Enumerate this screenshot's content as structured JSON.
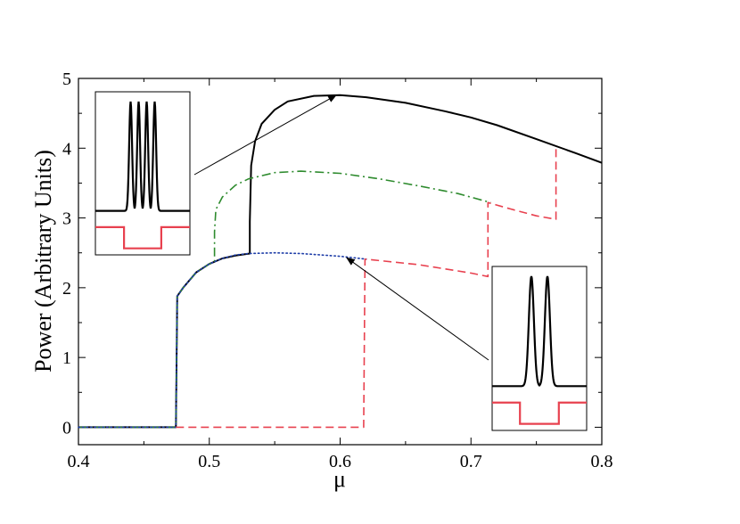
{
  "chart_data": {
    "type": "line",
    "xlabel": "μ",
    "ylabel": "Power (Arbitrary Units)",
    "xlim": [
      0.4,
      0.8
    ],
    "ylim": [
      -0.25,
      5
    ],
    "xticks": [
      0.4,
      0.5,
      0.6,
      0.7,
      0.8
    ],
    "xtick_labels": [
      "0.4",
      "0.5",
      "0.6",
      "0.7",
      "0.8"
    ],
    "yticks": [
      0,
      1,
      2,
      3,
      4,
      5
    ],
    "ytick_labels": [
      "0",
      "1",
      "2",
      "3",
      "4",
      "5"
    ],
    "grid": false,
    "legend": "none",
    "series": [
      {
        "color": "#000000",
        "style": "solid",
        "points": [
          [
            0.4,
            0
          ],
          [
            0.4745,
            0
          ],
          [
            0.4755,
            1.88
          ],
          [
            0.48,
            2.0
          ],
          [
            0.49,
            2.22
          ],
          [
            0.5,
            2.34
          ],
          [
            0.51,
            2.42
          ],
          [
            0.52,
            2.46
          ],
          [
            0.531,
            2.49
          ],
          [
            0.531,
            2.95
          ],
          [
            0.532,
            3.75
          ],
          [
            0.535,
            4.1
          ],
          [
            0.54,
            4.35
          ],
          [
            0.55,
            4.55
          ],
          [
            0.56,
            4.67
          ],
          [
            0.58,
            4.75
          ],
          [
            0.6,
            4.76
          ],
          [
            0.62,
            4.73
          ],
          [
            0.65,
            4.65
          ],
          [
            0.68,
            4.53
          ],
          [
            0.7,
            4.44
          ],
          [
            0.72,
            4.33
          ],
          [
            0.75,
            4.13
          ],
          [
            0.78,
            3.93
          ],
          [
            0.8,
            3.79
          ]
        ]
      },
      {
        "color": "#2e8b2e",
        "style": "dashdot",
        "points": [
          [
            0.4,
            0
          ],
          [
            0.4745,
            0
          ],
          [
            0.4755,
            1.88
          ],
          [
            0.48,
            2.0
          ],
          [
            0.49,
            2.22
          ],
          [
            0.5,
            2.34
          ],
          [
            0.504,
            2.38
          ],
          [
            0.504,
            2.8
          ],
          [
            0.505,
            3.12
          ],
          [
            0.51,
            3.3
          ],
          [
            0.52,
            3.47
          ],
          [
            0.53,
            3.56
          ],
          [
            0.55,
            3.65
          ],
          [
            0.57,
            3.67
          ],
          [
            0.6,
            3.64
          ],
          [
            0.63,
            3.56
          ],
          [
            0.66,
            3.46
          ],
          [
            0.69,
            3.35
          ],
          [
            0.715,
            3.22
          ]
        ]
      },
      {
        "color": "#1f3ea8",
        "style": "dotted",
        "points": [
          [
            0.4,
            0
          ],
          [
            0.4745,
            0
          ],
          [
            0.4755,
            1.88
          ],
          [
            0.48,
            2.0
          ],
          [
            0.49,
            2.22
          ],
          [
            0.5,
            2.34
          ],
          [
            0.51,
            2.42
          ],
          [
            0.52,
            2.47
          ],
          [
            0.53,
            2.49
          ],
          [
            0.55,
            2.5
          ],
          [
            0.57,
            2.49
          ],
          [
            0.6,
            2.45
          ],
          [
            0.62,
            2.41
          ]
        ]
      },
      {
        "color": "#e8414f",
        "style": "dashed",
        "points": [
          [
            0.4745,
            0
          ],
          [
            0.618,
            0
          ],
          [
            0.619,
            2.41
          ],
          [
            0.64,
            2.37
          ],
          [
            0.66,
            2.33
          ],
          [
            0.68,
            2.27
          ],
          [
            0.7,
            2.21
          ],
          [
            0.713,
            2.16
          ],
          [
            0.713,
            3.22
          ],
          [
            0.73,
            3.13
          ],
          [
            0.75,
            3.03
          ],
          [
            0.765,
            2.98
          ],
          [
            0.765,
            4.02
          ]
        ]
      }
    ],
    "insets": [
      {
        "peaks": 4,
        "arrow_to": [
          0.597,
          4.76
        ]
      },
      {
        "peaks": 2,
        "arrow_to": [
          0.605,
          2.43
        ]
      }
    ]
  }
}
